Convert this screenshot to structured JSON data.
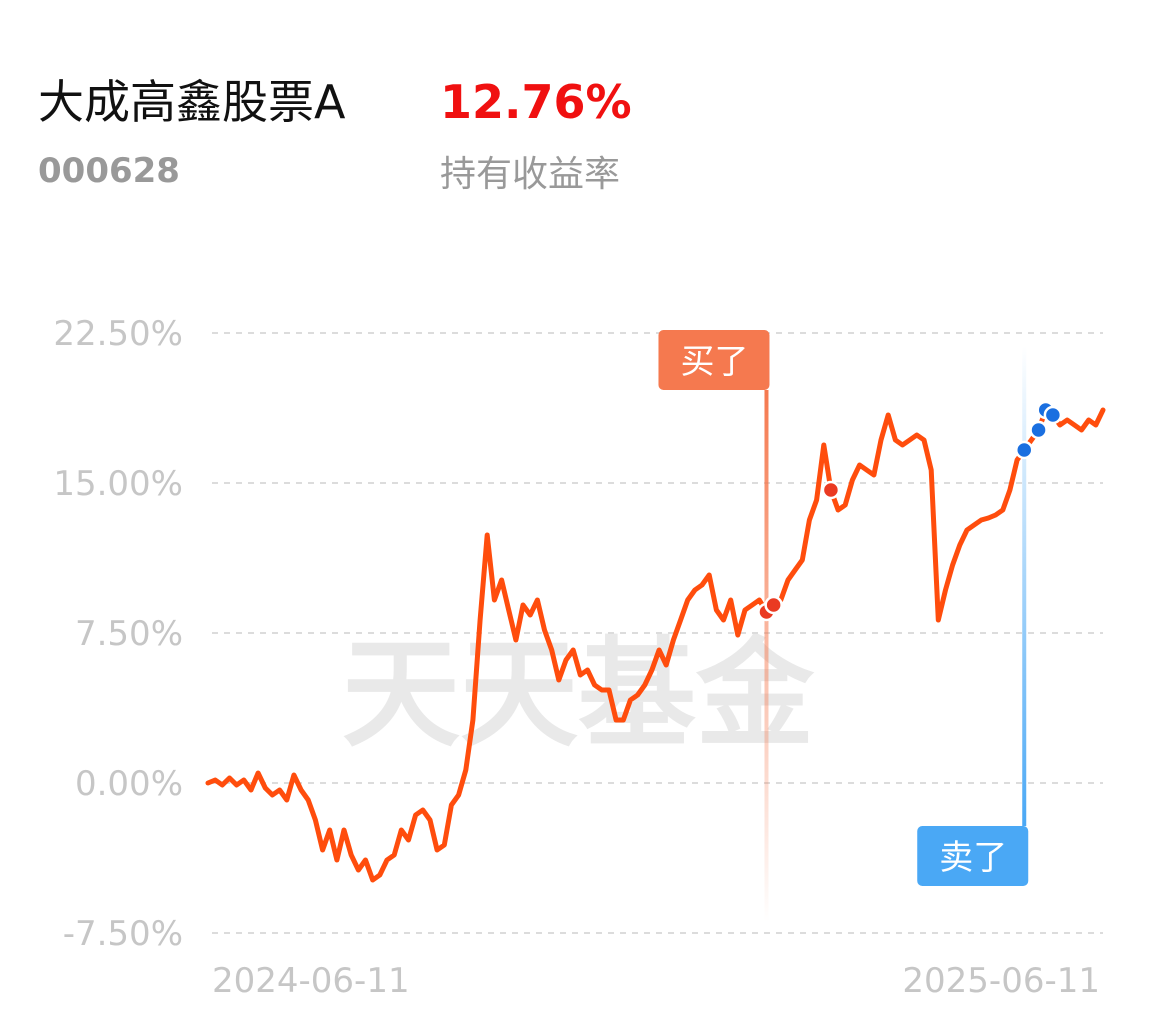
{
  "header": {
    "title": "大成高鑫股票A",
    "return": "12.76%",
    "code": "000628",
    "return_label": "持有收益率"
  },
  "watermark": "天天基金",
  "chart_data": {
    "type": "line",
    "categories": [
      "2024-06-11",
      null,
      null,
      null,
      null,
      null,
      null,
      null,
      null,
      null,
      null,
      null,
      null,
      null,
      null,
      null,
      null,
      null,
      null,
      null,
      null,
      null,
      null,
      null,
      null,
      null,
      null,
      null,
      null,
      null,
      null,
      null,
      null,
      null,
      null,
      null,
      null,
      null,
      null,
      null,
      null,
      null,
      null,
      null,
      null,
      null,
      null,
      null,
      null,
      null,
      null,
      null,
      null,
      null,
      null,
      null,
      null,
      null,
      null,
      null,
      null,
      null,
      null,
      null,
      null,
      null,
      null,
      null,
      null,
      null,
      null,
      null,
      null,
      null,
      null,
      null,
      null,
      null,
      null,
      null,
      null,
      null,
      null,
      null,
      null,
      null,
      null,
      null,
      null,
      null,
      null,
      null,
      null,
      null,
      null,
      null,
      null,
      null,
      null,
      null,
      null,
      null,
      null,
      null,
      null,
      null,
      null,
      null,
      null,
      null,
      null,
      null,
      null,
      null,
      null,
      null,
      null,
      null,
      null,
      null,
      null,
      null,
      null,
      null,
      null,
      "2025-06-11"
    ],
    "series": [
      {
        "color": "#ff4d0d",
        "values": [
          0,
          0.15,
          -0.1,
          0.25,
          -0.1,
          0.15,
          -0.35,
          0.5,
          -0.25,
          -0.6,
          -0.35,
          -0.85,
          0.4,
          -0.35,
          -0.85,
          -1.85,
          -3.35,
          -2.35,
          -3.85,
          -2.35,
          -3.6,
          -4.35,
          -3.85,
          -4.85,
          -4.6,
          -3.85,
          -3.6,
          -2.35,
          -2.85,
          -1.6,
          -1.35,
          -1.85,
          -3.35,
          -3.1,
          -1.1,
          -0.6,
          0.65,
          3.15,
          8.15,
          12.4,
          9.15,
          10.15,
          8.65,
          7.15,
          8.9,
          8.4,
          9.15,
          7.65,
          6.65,
          5.15,
          6.15,
          6.65,
          5.4,
          5.65,
          4.9,
          4.65,
          4.65,
          3.15,
          3.15,
          4.15,
          4.4,
          4.9,
          5.65,
          6.65,
          5.9,
          7.15,
          8.15,
          9.15,
          9.65,
          9.9,
          10.4,
          8.65,
          8.15,
          9.15,
          7.4,
          8.65,
          8.9,
          9.15,
          8.55,
          8.9,
          9.15,
          10.15,
          10.65,
          11.15,
          13.15,
          14.15,
          16.9,
          14.65,
          13.65,
          13.9,
          15.15,
          15.9,
          15.65,
          15.4,
          17.15,
          18.4,
          17.15,
          16.9,
          17.15,
          17.4,
          17.15,
          15.65,
          8.15,
          9.65,
          10.9,
          11.9,
          12.65,
          12.9,
          13.15,
          13.25,
          13.4,
          13.65,
          14.65,
          16.15,
          16.65,
          17.15,
          17.65,
          18.65,
          18.4,
          17.9,
          18.15,
          17.9,
          17.65,
          18.15,
          17.9,
          18.65
        ]
      },
      {
        "name": "买了",
        "color": "#ea3a22",
        "flag_color": "#f5794f",
        "values": [
          null,
          null,
          null,
          null,
          null,
          null,
          null,
          null,
          null,
          null,
          null,
          null,
          null,
          null,
          null,
          null,
          null,
          null,
          null,
          null,
          null,
          null,
          null,
          null,
          null,
          null,
          null,
          null,
          null,
          null,
          null,
          null,
          null,
          null,
          null,
          null,
          null,
          null,
          null,
          null,
          null,
          null,
          null,
          null,
          null,
          null,
          null,
          null,
          null,
          null,
          null,
          null,
          null,
          null,
          null,
          null,
          null,
          null,
          null,
          null,
          null,
          null,
          null,
          null,
          null,
          null,
          null,
          null,
          null,
          null,
          null,
          null,
          null,
          null,
          null,
          null,
          null,
          null,
          8.55,
          8.9,
          null,
          null,
          null,
          null,
          null,
          null,
          null,
          14.65,
          null,
          null,
          null,
          null,
          null,
          null,
          null,
          null,
          null,
          null,
          null,
          null,
          null,
          null,
          null,
          null,
          null,
          null,
          null,
          null,
          null,
          null,
          null,
          null,
          null,
          null,
          null,
          null,
          null,
          null,
          null,
          null,
          null,
          null,
          null,
          null,
          null,
          null
        ]
      },
      {
        "name": "卖了",
        "color": "#1a6fe0",
        "flag_color": "#4aa8f5",
        "values": [
          null,
          null,
          null,
          null,
          null,
          null,
          null,
          null,
          null,
          null,
          null,
          null,
          null,
          null,
          null,
          null,
          null,
          null,
          null,
          null,
          null,
          null,
          null,
          null,
          null,
          null,
          null,
          null,
          null,
          null,
          null,
          null,
          null,
          null,
          null,
          null,
          null,
          null,
          null,
          null,
          null,
          null,
          null,
          null,
          null,
          null,
          null,
          null,
          null,
          null,
          null,
          null,
          null,
          null,
          null,
          null,
          null,
          null,
          null,
          null,
          null,
          null,
          null,
          null,
          null,
          null,
          null,
          null,
          null,
          null,
          null,
          null,
          null,
          null,
          null,
          null,
          null,
          null,
          null,
          null,
          null,
          null,
          null,
          null,
          null,
          null,
          null,
          null,
          null,
          null,
          null,
          null,
          null,
          null,
          null,
          null,
          null,
          null,
          null,
          null,
          null,
          null,
          null,
          null,
          null,
          null,
          null,
          null,
          null,
          null,
          null,
          null,
          null,
          null,
          16.65,
          null,
          17.65,
          18.65,
          18.4,
          null,
          null,
          null,
          null,
          null,
          null,
          null
        ]
      }
    ],
    "ylim": [
      -7.5,
      22.5
    ],
    "yticks": [
      {
        "value": -7.5,
        "label": "-7.50%"
      },
      {
        "value": 0,
        "label": "0.00%"
      },
      {
        "value": 7.5,
        "label": "7.50%"
      },
      {
        "value": 15,
        "label": "15.00%"
      },
      {
        "value": 22.5,
        "label": "22.50%"
      }
    ],
    "grid": true
  }
}
